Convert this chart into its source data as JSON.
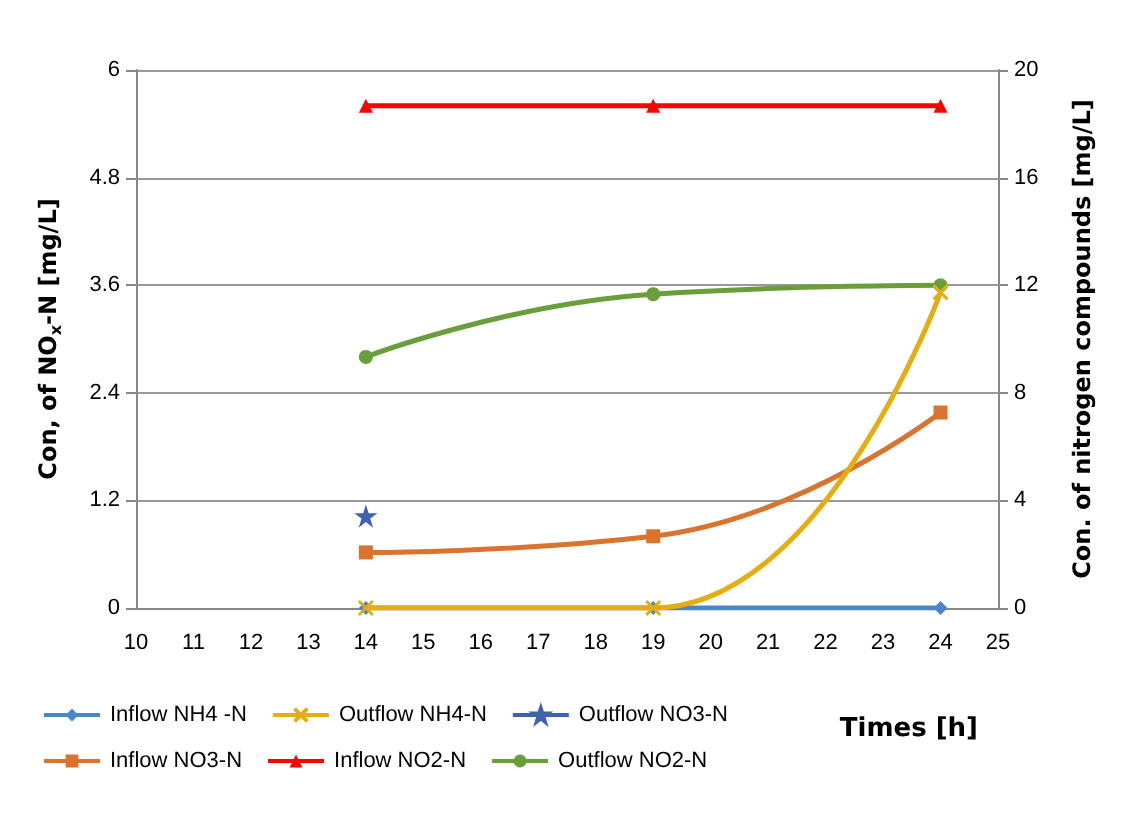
{
  "chart_data": {
    "type": "line",
    "xlabel": "Times [h]",
    "ylabel": "Con, of NO$_{x}$-N [mg/L]",
    "y2label": "Con. of nitrogen compounds [mg/L]",
    "x": [
      14,
      19,
      24
    ],
    "series": [
      {
        "name": "Inflow NH4 -N",
        "color": "#4a86c8",
        "marker": "diamond",
        "values": [
          0,
          0,
          0
        ]
      },
      {
        "name": "Outflow NH4-N",
        "color": "#e6ad10",
        "marker": "cross",
        "values": [
          0,
          0,
          3.52
        ]
      },
      {
        "name": "Outflow NO3-N",
        "color": "#3f62b0",
        "marker": "star",
        "values": [
          1.02,
          null,
          null
        ]
      },
      {
        "name": "Inflow NO3-N",
        "color": "#d9732e",
        "marker": "square",
        "values": [
          0.62,
          0.8,
          2.18
        ]
      },
      {
        "name": "Inflow NO2-N",
        "color": "#ff0000",
        "marker": "triangle",
        "values": [
          5.6,
          5.6,
          5.6
        ]
      },
      {
        "name": "Outflow NO2-N",
        "color": "#6a9e3a",
        "marker": "circle",
        "values": [
          2.8,
          3.5,
          3.6
        ]
      }
    ],
    "xlim": [
      10,
      25
    ],
    "xticks": [
      10,
      11,
      12,
      13,
      14,
      15,
      16,
      17,
      18,
      19,
      20,
      21,
      22,
      23,
      24,
      25
    ],
    "ylim": [
      0,
      6
    ],
    "yticks": [
      0,
      1.2,
      2.4,
      3.6,
      4.8,
      6
    ],
    "y2lim": [
      0,
      20
    ],
    "y2ticks": [
      0,
      4,
      8,
      12,
      16,
      20
    ],
    "grid": "y",
    "legend": "bottom left"
  }
}
